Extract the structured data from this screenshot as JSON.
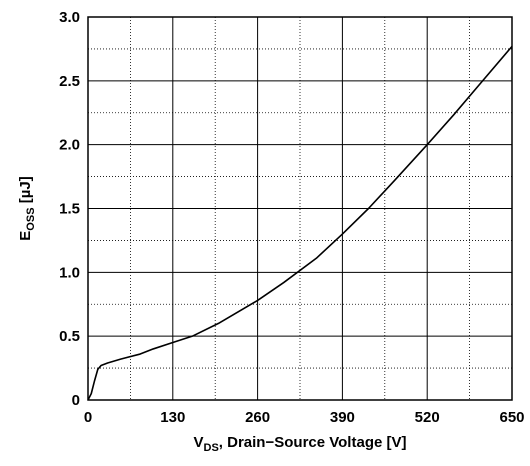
{
  "chart_data": {
    "type": "line",
    "title": "",
    "xlabel": {
      "main": "V",
      "sub": "DS",
      "rest": ", Drain−Source Voltage [V]"
    },
    "ylabel": {
      "main": "E",
      "sub": "OSS",
      "rest": " [µJ]"
    },
    "xlim": [
      0,
      650
    ],
    "ylim": [
      0,
      3.0
    ],
    "x_ticks": [
      {
        "value": 0,
        "label": "0"
      },
      {
        "value": 130,
        "label": "130"
      },
      {
        "value": 260,
        "label": "260"
      },
      {
        "value": 390,
        "label": "390"
      },
      {
        "value": 520,
        "label": "520"
      },
      {
        "value": 650,
        "label": "650"
      }
    ],
    "y_ticks": [
      {
        "value": 0,
        "label": "0"
      },
      {
        "value": 0.5,
        "label": "0.5"
      },
      {
        "value": 1.0,
        "label": "1.0"
      },
      {
        "value": 1.5,
        "label": "1.5"
      },
      {
        "value": 2.0,
        "label": "2.0"
      },
      {
        "value": 2.5,
        "label": "2.5"
      },
      {
        "value": 3.0,
        "label": "3.0"
      }
    ],
    "major_grid": true,
    "minor_grid": true,
    "x_minor_step": 65,
    "y_minor_step": 0.25,
    "series": [
      {
        "x": [
          0,
          5,
          10,
          15,
          20,
          30,
          50,
          80,
          100,
          130,
          160,
          200,
          260,
          300,
          350,
          390,
          430,
          470,
          520,
          560,
          600,
          650
        ],
        "y": [
          0,
          0.05,
          0.15,
          0.24,
          0.27,
          0.29,
          0.32,
          0.36,
          0.4,
          0.45,
          0.5,
          0.6,
          0.78,
          0.92,
          1.11,
          1.3,
          1.5,
          1.72,
          2.0,
          2.23,
          2.47,
          2.77
        ]
      }
    ]
  }
}
